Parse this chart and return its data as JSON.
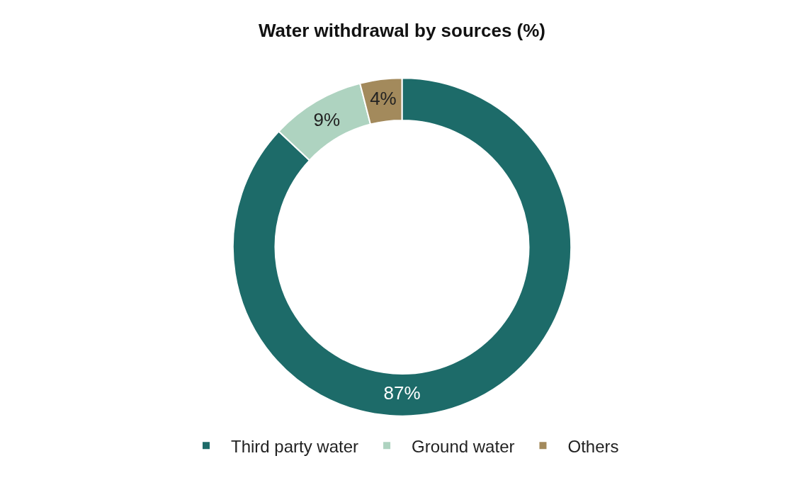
{
  "chart_data": {
    "type": "donut",
    "title": "Water withdrawal by sources (%)",
    "categories": [
      "Third party water",
      "Ground water",
      "Others"
    ],
    "values": [
      87,
      9,
      4
    ],
    "colors": [
      "#1d6b69",
      "#aed3c0",
      "#a38a5c"
    ],
    "value_labels": [
      "87%",
      "9%",
      "4%"
    ],
    "legend": "bottom"
  }
}
